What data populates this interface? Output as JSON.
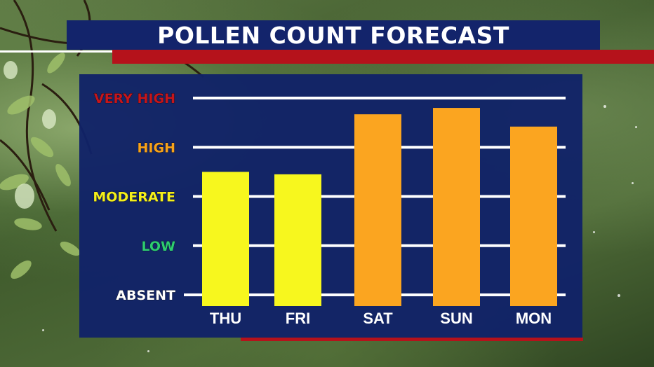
{
  "title": "POLLEN COUNT FORECAST",
  "colors": {
    "title_bg": "#13246b",
    "accent_red": "#b5121b",
    "panel_bg": "#112268",
    "gridline": "#ffffff",
    "bar_moderate": "#f7f71e",
    "bar_high": "#fba520"
  },
  "chart_data": {
    "type": "bar",
    "title": "POLLEN COUNT FORECAST",
    "categories": [
      "THU",
      "FRI",
      "SAT",
      "SUN",
      "MON"
    ],
    "values": [
      2.5,
      2.45,
      3.67,
      3.8,
      3.42
    ],
    "bar_colors": [
      "#f7f71e",
      "#f7f71e",
      "#fba520",
      "#fba520",
      "#fba520"
    ],
    "y_levels": [
      {
        "label": "ABSENT",
        "value": 0,
        "color": "#ffffff"
      },
      {
        "label": "LOW",
        "value": 1,
        "color": "#2ecc71"
      },
      {
        "label": "MODERATE",
        "value": 2,
        "color": "#f4ef1b"
      },
      {
        "label": "HIGH",
        "value": 3,
        "color": "#f7a21b"
      },
      {
        "label": "VERY HIGH",
        "value": 4,
        "color": "#c4161c"
      }
    ],
    "ylim": [
      0,
      4
    ],
    "grid": true,
    "legend": "none"
  }
}
